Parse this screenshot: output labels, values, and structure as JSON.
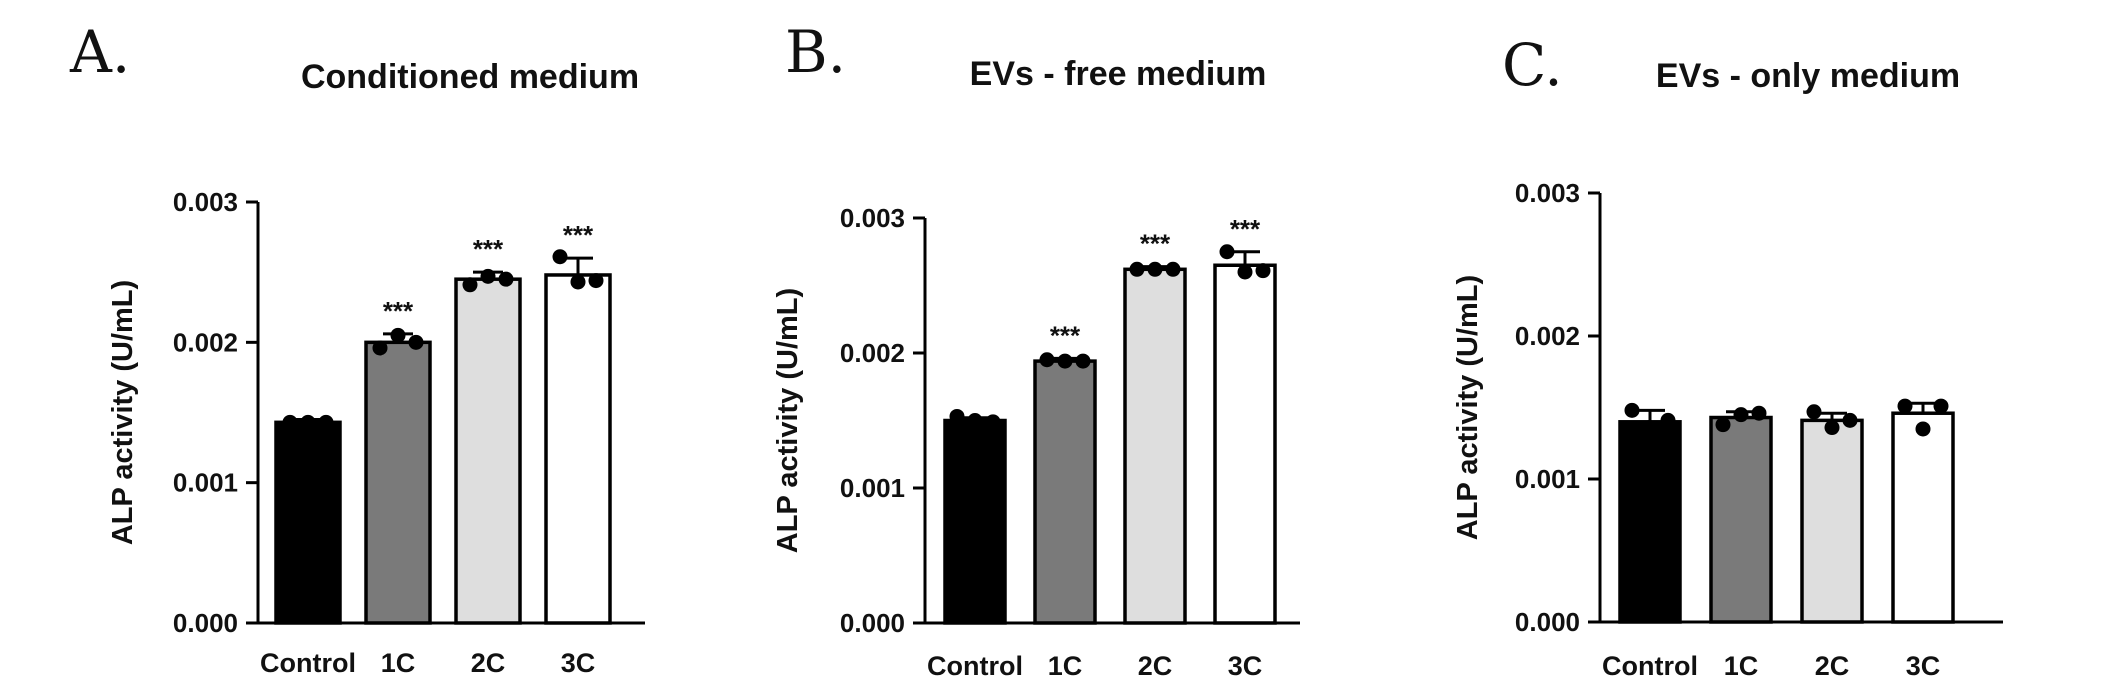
{
  "chart_data": [
    {
      "type": "bar",
      "panel_letter": "A.",
      "title": "Conditioned medium",
      "ylabel": "ALP activity (U/mL)",
      "categories": [
        "Control",
        "1C",
        "2C",
        "3C"
      ],
      "values": [
        0.00143,
        0.002,
        0.00245,
        0.00248
      ],
      "errors": [
        2e-05,
        6e-05,
        5e-05,
        0.00012
      ],
      "points": [
        [
          0.00143,
          0.00143,
          0.00143
        ],
        [
          0.00196,
          0.00205,
          0.002
        ],
        [
          0.00241,
          0.00247,
          0.00245
        ],
        [
          0.00261,
          0.00243,
          0.00244
        ]
      ],
      "significance": [
        "",
        "***",
        "***",
        "***"
      ],
      "bar_colors": [
        "#000000",
        "#7a7a7a",
        "#dedede",
        "#ffffff"
      ],
      "ylim": [
        0,
        0.003
      ],
      "yticks": [
        0.0,
        0.001,
        0.002,
        0.003
      ],
      "ytick_labels": [
        "0.000",
        "0.001",
        "0.002",
        "0.003"
      ],
      "grid": false
    },
    {
      "type": "bar",
      "panel_letter": "B.",
      "title": "EVs - free medium",
      "ylabel": "ALP activity (U/mL)",
      "categories": [
        "Control",
        "1C",
        "2C",
        "3C"
      ],
      "values": [
        0.0015,
        0.00194,
        0.00262,
        0.00265
      ],
      "errors": [
        2e-05,
        2e-05,
        2e-05,
        0.0001
      ],
      "points": [
        [
          0.00153,
          0.0015,
          0.00149
        ],
        [
          0.00195,
          0.00194,
          0.00194
        ],
        [
          0.00262,
          0.00262,
          0.00262
        ],
        [
          0.00275,
          0.0026,
          0.00261
        ]
      ],
      "significance": [
        "",
        "***",
        "***",
        "***"
      ],
      "bar_colors": [
        "#000000",
        "#7a7a7a",
        "#dedede",
        "#ffffff"
      ],
      "ylim": [
        0,
        0.003
      ],
      "yticks": [
        0.0,
        0.001,
        0.002,
        0.003
      ],
      "ytick_labels": [
        "0.000",
        "0.001",
        "0.002",
        "0.003"
      ],
      "grid": false
    },
    {
      "type": "bar",
      "panel_letter": "C.",
      "title": "EVs - only medium",
      "ylabel": "ALP activity (U/mL)",
      "categories": [
        "Control",
        "1C",
        "2C",
        "3C"
      ],
      "values": [
        0.0014,
        0.00143,
        0.00141,
        0.00146
      ],
      "errors": [
        8e-05,
        4e-05,
        5e-05,
        7e-05
      ],
      "points": [
        [
          0.00148,
          0.00136,
          0.00141
        ],
        [
          0.00138,
          0.00145,
          0.00146
        ],
        [
          0.00147,
          0.00136,
          0.00141
        ],
        [
          0.00151,
          0.00135,
          0.00151
        ]
      ],
      "significance": [
        "",
        "",
        "",
        ""
      ],
      "bar_colors": [
        "#000000",
        "#7a7a7a",
        "#dedede",
        "#ffffff"
      ],
      "ylim": [
        0,
        0.003
      ],
      "yticks": [
        0.0,
        0.001,
        0.002,
        0.003
      ],
      "ytick_labels": [
        "0.000",
        "0.001",
        "0.002",
        "0.003"
      ],
      "grid": false
    }
  ]
}
